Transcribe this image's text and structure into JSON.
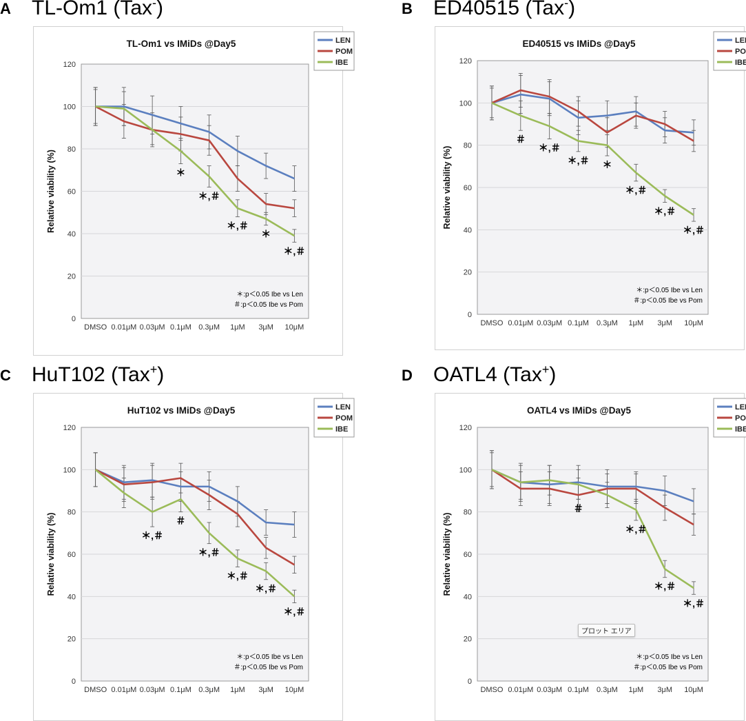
{
  "colors": {
    "LEN": "#5b7fbf",
    "POM": "#b9473f",
    "IBE": "#9bbb59"
  },
  "notes": [
    "＊:p＜0.05  Ibe vs Len",
    "＃:p＜0.05  Ibe vs Pom"
  ],
  "chart_data": [
    {
      "type": "line",
      "panel_letter": "A",
      "panel_title": "TL-Om1 (Tax",
      "panel_title_sup": "-",
      "panel_title_end": ")",
      "title": "TL-Om1 vs IMiDs @Day5",
      "ylabel": "Relative viability (%)",
      "ylim": [
        0,
        120
      ],
      "yticks": [
        0,
        20,
        40,
        60,
        80,
        100,
        120
      ],
      "categories": [
        "DMSO",
        "0.01μM",
        "0.03μM",
        "0.1μM",
        "0.3μM",
        "1μM",
        "3μM",
        "10μM"
      ],
      "series": [
        {
          "name": "LEN",
          "values": [
            100,
            100,
            96,
            92,
            88,
            79,
            72,
            66
          ],
          "errors": [
            9,
            9,
            9,
            8,
            8,
            7,
            6,
            6
          ]
        },
        {
          "name": "POM",
          "values": [
            100,
            93,
            89,
            87,
            84,
            66,
            54,
            52
          ],
          "errors": [
            9,
            8,
            8,
            8,
            7,
            6,
            5,
            4
          ]
        },
        {
          "name": "IBE",
          "values": [
            100,
            99,
            89,
            79,
            67,
            52,
            47,
            39
          ],
          "errors": [
            8,
            8,
            7,
            6,
            5,
            4,
            3,
            3
          ]
        }
      ],
      "annotations": [
        {
          "category": "0.1μM",
          "text": "＊"
        },
        {
          "category": "0.3μM",
          "text": "＊,＃"
        },
        {
          "category": "1μM",
          "text": "＊,＃"
        },
        {
          "category": "3μM",
          "text": "＊"
        },
        {
          "category": "10μM",
          "text": "＊,＃"
        }
      ],
      "legend": [
        "LEN",
        "POM",
        "IBE"
      ]
    },
    {
      "type": "line",
      "panel_letter": "B",
      "panel_title": "ED40515 (Tax",
      "panel_title_sup": "-",
      "panel_title_end": ")",
      "title": "ED40515 vs IMiDs @Day5",
      "ylabel": "Relative viability (%)",
      "ylim": [
        0,
        120
      ],
      "yticks": [
        0,
        20,
        40,
        60,
        80,
        100,
        120
      ],
      "categories": [
        "DMSO",
        "0.01μM",
        "0.03μM",
        "0.1μM",
        "0.3μM",
        "1μM",
        "3μM",
        "10μM"
      ],
      "series": [
        {
          "name": "LEN",
          "values": [
            100,
            104,
            102,
            93,
            94,
            96,
            87,
            86
          ],
          "errors": [
            8,
            9,
            8,
            8,
            7,
            7,
            6,
            6
          ]
        },
        {
          "name": "POM",
          "values": [
            100,
            106,
            103,
            96,
            86,
            94,
            90,
            82
          ],
          "errors": [
            8,
            8,
            8,
            7,
            7,
            6,
            6,
            5
          ]
        },
        {
          "name": "IBE",
          "values": [
            100,
            94,
            89,
            82,
            80,
            67,
            56,
            47
          ],
          "errors": [
            7,
            7,
            6,
            5,
            5,
            4,
            3,
            3
          ]
        }
      ],
      "annotations": [
        {
          "category": "0.01μM",
          "text": "＃"
        },
        {
          "category": "0.03μM",
          "text": "＊,＃"
        },
        {
          "category": "0.1μM",
          "text": "＊,＃"
        },
        {
          "category": "0.3μM",
          "text": "＊"
        },
        {
          "category": "1μM",
          "text": "＊,＃"
        },
        {
          "category": "3μM",
          "text": "＊,＃"
        },
        {
          "category": "10μM",
          "text": "＊,＃"
        }
      ],
      "legend": [
        "LEN",
        "POM",
        "IBE"
      ]
    },
    {
      "type": "line",
      "panel_letter": "C",
      "panel_title": "HuT102 (Tax",
      "panel_title_sup": "+",
      "panel_title_end": ")",
      "title": "HuT102 vs IMiDs @Day5",
      "ylabel": "Relative viability (%)",
      "ylim": [
        0,
        120
      ],
      "yticks": [
        0,
        20,
        40,
        60,
        80,
        100,
        120
      ],
      "categories": [
        "DMSO",
        "0.01μM",
        "0.03μM",
        "0.1μM",
        "0.3μM",
        "1μM",
        "3μM",
        "10μM"
      ],
      "series": [
        {
          "name": "LEN",
          "values": [
            100,
            94,
            95,
            92,
            92,
            85,
            75,
            74
          ],
          "errors": [
            8,
            8,
            8,
            7,
            7,
            7,
            6,
            6
          ]
        },
        {
          "name": "POM",
          "values": [
            100,
            93,
            94,
            96,
            88,
            79,
            63,
            55
          ],
          "errors": [
            8,
            8,
            8,
            7,
            7,
            6,
            5,
            4
          ]
        },
        {
          "name": "IBE",
          "values": [
            100,
            89,
            80,
            86,
            70,
            58,
            52,
            40
          ],
          "errors": [
            8,
            7,
            7,
            6,
            5,
            4,
            4,
            3
          ]
        }
      ],
      "annotations": [
        {
          "category": "0.03μM",
          "text": "＊,＃"
        },
        {
          "category": "0.1μM",
          "text": "＃"
        },
        {
          "category": "0.3μM",
          "text": "＊,＃"
        },
        {
          "category": "1μM",
          "text": "＊,＃"
        },
        {
          "category": "3μM",
          "text": "＊,＃"
        },
        {
          "category": "10μM",
          "text": "＊,＃"
        }
      ],
      "legend": [
        "LEN",
        "POM",
        "IBE"
      ]
    },
    {
      "type": "line",
      "panel_letter": "D",
      "panel_title": "OATL4 (Tax",
      "panel_title_sup": "+",
      "panel_title_end": ")",
      "title": "OATL4 vs IMiDs @Day5",
      "ylabel": "Relative viability (%)",
      "ylim": [
        0,
        120
      ],
      "yticks": [
        0,
        20,
        40,
        60,
        80,
        100,
        120
      ],
      "categories": [
        "DMSO",
        "0.01μM",
        "0.03μM",
        "0.1μM",
        "0.3μM",
        "1μM",
        "3μM",
        "10μM"
      ],
      "series": [
        {
          "name": "LEN",
          "values": [
            100,
            94,
            93,
            94,
            92,
            92,
            90,
            85
          ],
          "errors": [
            9,
            9,
            9,
            8,
            8,
            7,
            7,
            6
          ]
        },
        {
          "name": "POM",
          "values": [
            100,
            91,
            91,
            88,
            91,
            91,
            82,
            74
          ],
          "errors": [
            9,
            8,
            8,
            8,
            7,
            7,
            6,
            5
          ]
        },
        {
          "name": "IBE",
          "values": [
            100,
            94,
            95,
            93,
            88,
            81,
            53,
            44
          ],
          "errors": [
            8,
            8,
            7,
            7,
            6,
            5,
            4,
            3
          ]
        }
      ],
      "annotations": [
        {
          "category": "0.1μM",
          "text": "＃"
        },
        {
          "category": "1μM",
          "text": "＊,＃"
        },
        {
          "category": "3μM",
          "text": "＊,＃"
        },
        {
          "category": "10μM",
          "text": "＊,＃"
        }
      ],
      "legend": [
        "LEN",
        "POM",
        "IBE"
      ],
      "badge": "プロット エリア"
    }
  ]
}
